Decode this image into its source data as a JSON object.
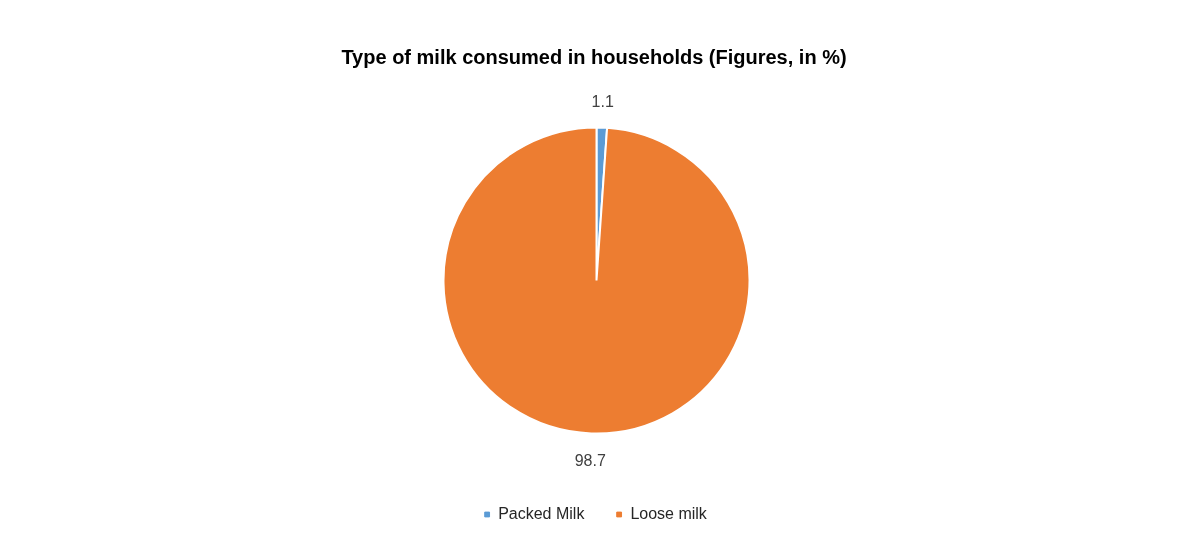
{
  "chart_data": {
    "type": "pie",
    "title": "Type of milk consumed in households (Figures, in %)",
    "categories": [
      "Packed Milk",
      "Loose milk"
    ],
    "values": [
      1.1,
      98.7
    ],
    "colors": [
      "#5b9bd5",
      "#ed7d31"
    ],
    "data_labels": true,
    "legend": "bottom"
  }
}
